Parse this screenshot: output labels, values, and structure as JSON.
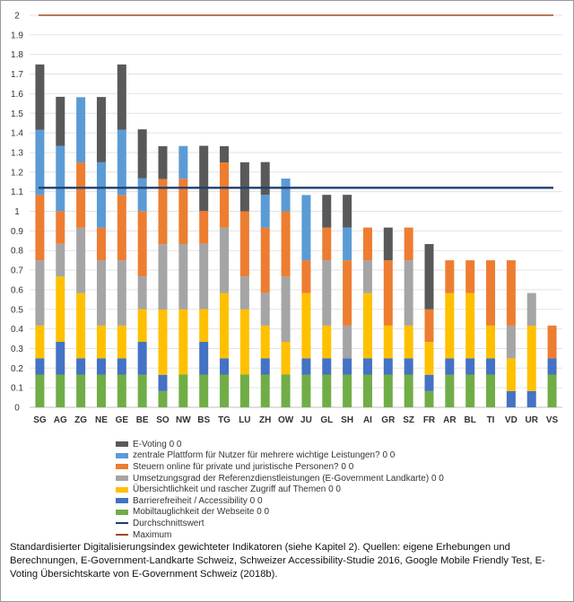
{
  "chart_data": {
    "type": "bar",
    "stacked": true,
    "title": "",
    "xlabel": "",
    "ylabel": "",
    "ylim": [
      0,
      2
    ],
    "yticks": [
      "0",
      "0.1",
      "0.2",
      "0.3",
      "0.4",
      "0.5",
      "0.6",
      "0.7",
      "0.8",
      "0.9",
      "1",
      "1.1",
      "1.2",
      "1.3",
      "1.4",
      "1.5",
      "1.6",
      "1.7",
      "1.8",
      "1.9",
      "2"
    ],
    "grid": true,
    "legend_position": "bottom",
    "categories": [
      "SG",
      "AG",
      "ZG",
      "NE",
      "GE",
      "BE",
      "SO",
      "NW",
      "BS",
      "TG",
      "LU",
      "ZH",
      "OW",
      "JU",
      "GL",
      "SH",
      "AI",
      "GR",
      "SZ",
      "FR",
      "AR",
      "BL",
      "TI",
      "VD",
      "UR",
      "VS"
    ],
    "series": [
      {
        "name": "Mobiltauglichkeit der Webseite 0 0",
        "color": "#70ad47",
        "values": [
          0.167,
          0.167,
          0.167,
          0.167,
          0.167,
          0.167,
          0.083,
          0.167,
          0.167,
          0.167,
          0.167,
          0.167,
          0.167,
          0.167,
          0.167,
          0.167,
          0.167,
          0.167,
          0.167,
          0.083,
          0.167,
          0.167,
          0.167,
          0,
          0,
          0.167
        ]
      },
      {
        "name": "Barrierefreiheit / Accessibility 0 0",
        "color": "#4472c4",
        "values": [
          0.083,
          0.167,
          0.083,
          0.083,
          0.083,
          0.167,
          0.083,
          0,
          0.167,
          0.083,
          0,
          0.083,
          0,
          0.083,
          0.083,
          0.083,
          0.083,
          0.083,
          0.083,
          0.083,
          0.083,
          0.083,
          0.083,
          0.083,
          0.083,
          0.083
        ]
      },
      {
        "name": "Übersichtlichkeit und rascher Zugriff auf Themen 0 0",
        "color": "#ffc000",
        "values": [
          0.167,
          0.333,
          0.333,
          0.167,
          0.167,
          0.167,
          0.333,
          0.333,
          0.167,
          0.333,
          0.333,
          0.167,
          0.167,
          0.333,
          0.167,
          0,
          0.333,
          0.167,
          0.167,
          0.167,
          0.333,
          0.333,
          0.167,
          0.167,
          0.333,
          0
        ]
      },
      {
        "name": "Umsetzungsgrad der Referenzdienstleistungen (E-Government Landkarte) 0 0",
        "color": "#a5a5a5",
        "values": [
          0.333,
          0.167,
          0.333,
          0.333,
          0.333,
          0.167,
          0.333,
          0.333,
          0.333,
          0.333,
          0.167,
          0.167,
          0.333,
          0,
          0.333,
          0.167,
          0.167,
          0,
          0.333,
          0,
          0,
          0,
          0,
          0.167,
          0.167,
          0
        ]
      },
      {
        "name": "Steuern online für private und juristische Personen? 0 0",
        "color": "#ed7d31",
        "values": [
          0.333,
          0.167,
          0.333,
          0.167,
          0.333,
          0.333,
          0.333,
          0.333,
          0.167,
          0.333,
          0.333,
          0.333,
          0.333,
          0.167,
          0.167,
          0.333,
          0.167,
          0.333,
          0.167,
          0.167,
          0.167,
          0.167,
          0.333,
          0.333,
          0,
          0.167
        ]
      },
      {
        "name": "zentrale Plattform für Nutzer für mehrere wichtige Leistungen? 0 0",
        "color": "#5b9bd5",
        "values": [
          0.333,
          0.333,
          0.333,
          0.333,
          0.333,
          0.167,
          0,
          0.167,
          0,
          0,
          0,
          0.167,
          0.167,
          0.333,
          0,
          0.167,
          0,
          0,
          0,
          0,
          0,
          0,
          0,
          0,
          0,
          0
        ]
      },
      {
        "name": "E-Voting 0 0",
        "color": "#595959",
        "values": [
          0.333,
          0.25,
          0,
          0.333,
          0.333,
          0.25,
          0.167,
          0,
          0.333,
          0.083,
          0.25,
          0.167,
          0,
          0,
          0.167,
          0.167,
          0,
          0.167,
          0,
          0.333,
          0,
          0,
          0,
          0,
          0,
          0
        ]
      }
    ],
    "lines": [
      {
        "name": "Durchschnittswert",
        "color": "#1f3e6e",
        "value": 1.12
      },
      {
        "name": "Maximum",
        "color": "#9e4a1c",
        "value": 2
      }
    ]
  },
  "caption": "Standardisierter Digitalisierungsindex gewichteter Indikatoren (siehe Kapitel 2). Quellen: eigene Erhebungen und Berechnungen, E-Government-Landkarte Schweiz, Schweizer Accessibility-Studie 2016, Google Mobile Friendly Test, E-Voting Übersichtskarte von E-Government Schweiz (2018b)."
}
